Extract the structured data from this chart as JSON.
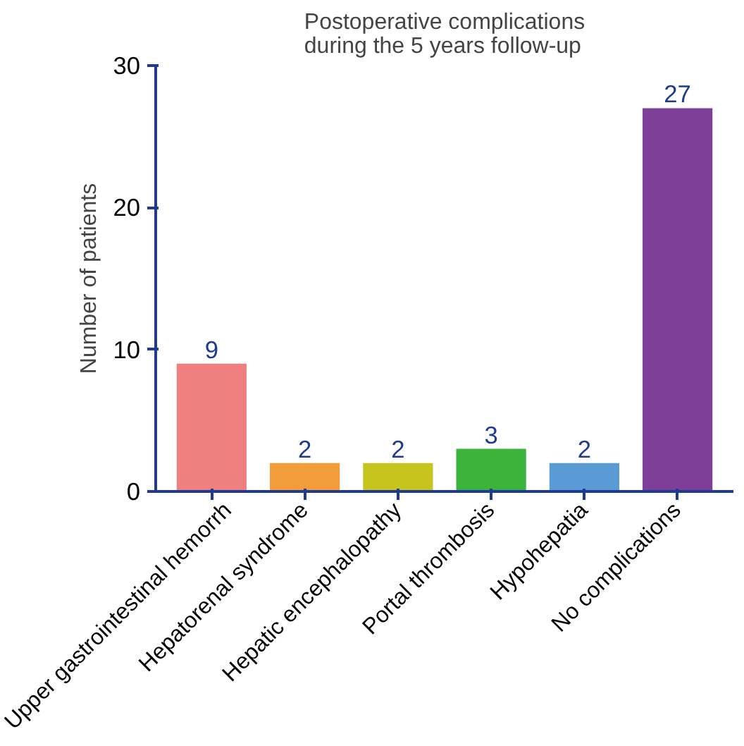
{
  "chart_data": {
    "type": "bar",
    "title": "Postoperative complications\nduring the 5 years follow-up",
    "ylabel": "Number of patients",
    "categories": [
      "Upper gastrointestinal hemorrh",
      "Hepatorenal syndrome",
      "Hepatic encephalopathy",
      "Portal thrombosis",
      "Hypohepatia",
      "No complications"
    ],
    "values": [
      9,
      2,
      2,
      3,
      2,
      27
    ],
    "colors": [
      "#f08080",
      "#f39c3a",
      "#c8c41e",
      "#3cb43c",
      "#5b9bd5",
      "#7f3f98"
    ],
    "ylim": [
      0,
      30
    ],
    "yticks": [
      0,
      10,
      20,
      30
    ],
    "grid": false,
    "data_labels": true
  }
}
